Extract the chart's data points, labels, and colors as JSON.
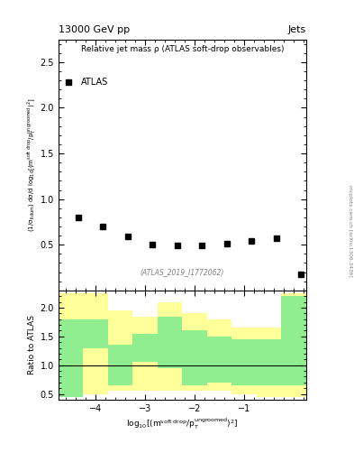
{
  "title_left": "13000 GeV pp",
  "title_right": "Jets",
  "plot_title": "Relative jet mass ρ (ATLAS soft-drop observables)",
  "atlas_label": "ATLAS",
  "watermark": "(ATLAS_2019_I1772062)",
  "arxiv": "mcplots.cern.ch [arXiv:1306.3436]",
  "data_x": [
    -4.35,
    -3.85,
    -3.35,
    -2.85,
    -2.35,
    -1.85,
    -1.35,
    -0.85,
    -0.35,
    0.15
  ],
  "data_y": [
    0.8,
    0.7,
    0.59,
    0.5,
    0.49,
    0.49,
    0.51,
    0.54,
    0.57,
    0.18
  ],
  "xlim": [
    -4.75,
    0.25
  ],
  "ylim_main": [
    0.0,
    2.75
  ],
  "ylim_ratio": [
    0.4,
    2.3
  ],
  "yticks_main": [
    0.5,
    1.0,
    1.5,
    2.0,
    2.5
  ],
  "yticks_ratio": [
    0.5,
    1.0,
    1.5,
    2.0
  ],
  "xticks": [
    -4,
    -3,
    -2,
    -1
  ],
  "xlabel": "log$_{10}$[(m$^{\\mathrm{soft\\ drop}}$/p$_{\\mathrm{T}}^{\\mathrm{ungroomed}}$)$^{2}$]",
  "ylabel_main": "(1/σ$_{\\mathrm{fidum}}$) dσ/d log$_{10}$[(m$^{\\mathrm{soft\\ drop}}$/p$_{\\mathrm{T}}^{\\mathrm{ungroomed}}$)$^{2}$]",
  "ylabel_ratio": "Ratio to ATLAS",
  "ratio_bins_x": [
    -4.75,
    -4.25,
    -3.75,
    -3.25,
    -2.75,
    -2.25,
    -1.75,
    -1.25,
    -0.75,
    -0.25,
    0.25
  ],
  "ratio_yellow_lo": [
    0.45,
    0.5,
    0.55,
    0.55,
    0.55,
    0.55,
    0.55,
    0.5,
    0.45,
    0.45
  ],
  "ratio_yellow_hi": [
    2.25,
    2.25,
    1.95,
    1.85,
    2.1,
    1.9,
    1.8,
    1.65,
    1.65,
    2.25
  ],
  "ratio_green_lo": [
    0.45,
    1.3,
    0.65,
    1.05,
    0.95,
    0.65,
    0.7,
    0.65,
    0.65,
    0.65
  ],
  "ratio_green_hi": [
    1.8,
    1.8,
    1.35,
    1.55,
    1.85,
    1.6,
    1.5,
    1.45,
    1.45,
    2.2
  ],
  "color_green": "#90ee90",
  "color_yellow": "#ffff99",
  "color_data": "black",
  "marker": "s",
  "marker_size": 4
}
